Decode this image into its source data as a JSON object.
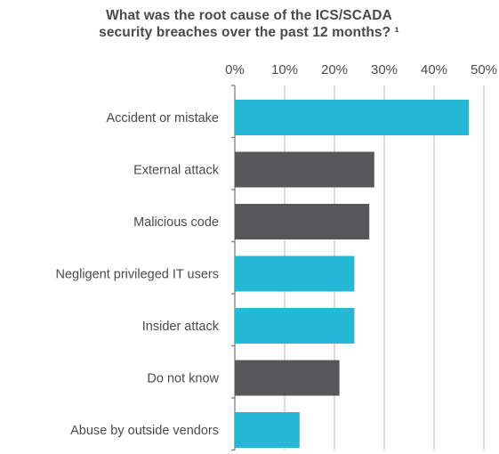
{
  "chart_data": {
    "type": "bar",
    "orientation": "horizontal",
    "title_lines": [
      "What was the root cause of the ICS/SCADA",
      "security breaches over the past 12 months? ¹"
    ],
    "categories": [
      "Accident or mistake",
      "External attack",
      "Malicious code",
      "Negligent privileged IT users",
      "Insider attack",
      "Do not know",
      "Abuse by outside vendors"
    ],
    "values": [
      47,
      28,
      27,
      24,
      24,
      21,
      13
    ],
    "value_unit": "%",
    "xlim": [
      0,
      50
    ],
    "x_ticks": [
      "0%",
      "10%",
      "20%",
      "30%",
      "40%",
      "50%"
    ],
    "x_axis_position": "top",
    "grid": "vertical",
    "colors": {
      "cyan": "#22b8d6",
      "gray": "#58585a",
      "grid": "#c9c9c9",
      "axis": "#7f7f7f"
    },
    "bar_colors": [
      "cyan",
      "gray",
      "gray",
      "cyan",
      "cyan",
      "gray",
      "cyan"
    ]
  }
}
